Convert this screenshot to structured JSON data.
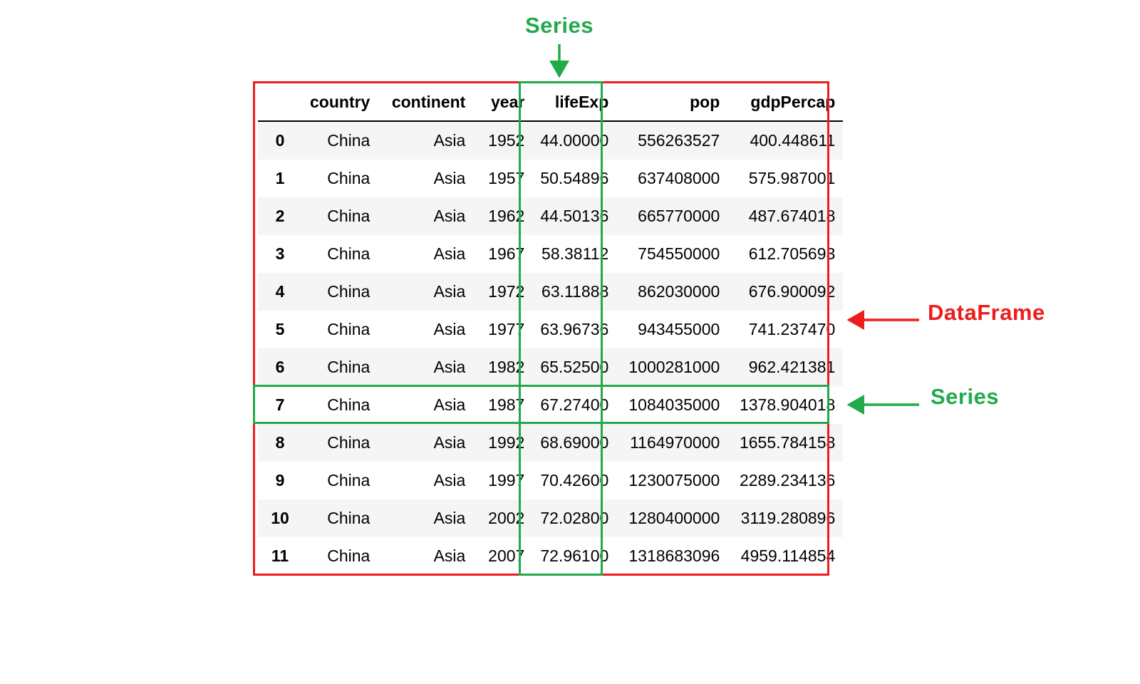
{
  "colors": {
    "dataframe": "#ee1c1c",
    "series": "#22aa4a"
  },
  "labels": {
    "series_column": "Series",
    "dataframe": "DataFrame",
    "series_row": "Series"
  },
  "table": {
    "columns": [
      "country",
      "continent",
      "year",
      "lifeExp",
      "pop",
      "gdpPercap"
    ],
    "rows": [
      {
        "index": "0",
        "cells": [
          "China",
          "Asia",
          "1952",
          "44.00000",
          "556263527",
          "400.448611"
        ]
      },
      {
        "index": "1",
        "cells": [
          "China",
          "Asia",
          "1957",
          "50.54896",
          "637408000",
          "575.987001"
        ]
      },
      {
        "index": "2",
        "cells": [
          "China",
          "Asia",
          "1962",
          "44.50136",
          "665770000",
          "487.674018"
        ]
      },
      {
        "index": "3",
        "cells": [
          "China",
          "Asia",
          "1967",
          "58.38112",
          "754550000",
          "612.705693"
        ]
      },
      {
        "index": "4",
        "cells": [
          "China",
          "Asia",
          "1972",
          "63.11888",
          "862030000",
          "676.900092"
        ]
      },
      {
        "index": "5",
        "cells": [
          "China",
          "Asia",
          "1977",
          "63.96736",
          "943455000",
          "741.237470"
        ]
      },
      {
        "index": "6",
        "cells": [
          "China",
          "Asia",
          "1982",
          "65.52500",
          "1000281000",
          "962.421381"
        ]
      },
      {
        "index": "7",
        "cells": [
          "China",
          "Asia",
          "1987",
          "67.27400",
          "1084035000",
          "1378.904018"
        ]
      },
      {
        "index": "8",
        "cells": [
          "China",
          "Asia",
          "1992",
          "68.69000",
          "1164970000",
          "1655.784158"
        ]
      },
      {
        "index": "9",
        "cells": [
          "China",
          "Asia",
          "1997",
          "70.42600",
          "1230075000",
          "2289.234136"
        ]
      },
      {
        "index": "10",
        "cells": [
          "China",
          "Asia",
          "2002",
          "72.02800",
          "1280400000",
          "3119.280896"
        ]
      },
      {
        "index": "11",
        "cells": [
          "China",
          "Asia",
          "2007",
          "72.96100",
          "1318683096",
          "4959.114854"
        ]
      }
    ]
  }
}
